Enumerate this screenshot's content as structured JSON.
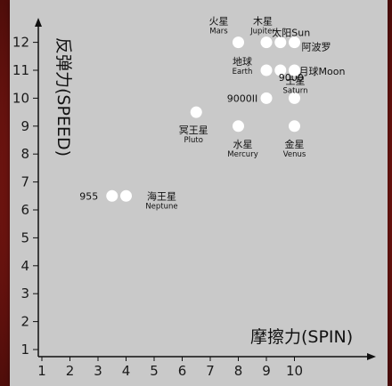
{
  "chart_data": {
    "type": "scatter",
    "xlabel": "摩擦力(SPIN)",
    "ylabel": "反弹力(SPEED)",
    "xlim": [
      1,
      10.5
    ],
    "ylim": [
      1,
      12.5
    ],
    "x_ticks": [
      1,
      2,
      3,
      4,
      5,
      6,
      7,
      8,
      9,
      10
    ],
    "y_ticks": [
      1,
      2,
      3,
      4,
      5,
      6,
      7,
      8,
      9,
      10,
      11,
      12
    ],
    "grid": false,
    "marker_color": "#ffffff",
    "background": "#c9c9c9",
    "frame_color": "#7d1712",
    "points": [
      {
        "x": 8.0,
        "y": 12.0,
        "label": "火星",
        "sub": "Mars"
      },
      {
        "x": 9.0,
        "y": 12.0,
        "label": "木星",
        "sub": "Jupiter"
      },
      {
        "x": 9.5,
        "y": 12.0,
        "label": "太阳Sun",
        "sub": ""
      },
      {
        "x": 10.0,
        "y": 12.0,
        "label": "阿波罗",
        "sub": ""
      },
      {
        "x": 9.0,
        "y": 11.0,
        "label": "地球",
        "sub": "Earth"
      },
      {
        "x": 9.5,
        "y": 11.0,
        "label": "9000",
        "sub": ""
      },
      {
        "x": 10.0,
        "y": 11.0,
        "label": "月球Moon",
        "sub": ""
      },
      {
        "x": 9.0,
        "y": 10.0,
        "label": "9000II",
        "sub": ""
      },
      {
        "x": 10.0,
        "y": 10.0,
        "label": "土星",
        "sub": "Saturn"
      },
      {
        "x": 6.5,
        "y": 9.5,
        "label": "冥王星",
        "sub": "Pluto"
      },
      {
        "x": 8.0,
        "y": 9.0,
        "label": "水星",
        "sub": "Mercury"
      },
      {
        "x": 10.0,
        "y": 9.0,
        "label": "金星",
        "sub": "Venus"
      },
      {
        "x": 3.5,
        "y": 6.5,
        "label": "955",
        "sub": ""
      },
      {
        "x": 4.0,
        "y": 6.5,
        "label": "海王星",
        "sub": "Neptune"
      }
    ]
  }
}
